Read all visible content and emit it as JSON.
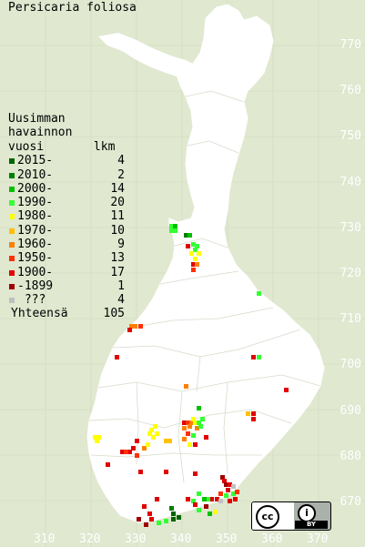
{
  "title": "Persicaria foliosa",
  "legend": {
    "header": [
      "Uusimman",
      "havainnon",
      "vuosi       lkm"
    ],
    "rows": [
      {
        "label": "2015-",
        "count": "4",
        "color": "#006400"
      },
      {
        "label": "2010-",
        "count": "2",
        "color": "#008000"
      },
      {
        "label": "2000-",
        "count": "14",
        "color": "#00c000"
      },
      {
        "label": "1990-",
        "count": "20",
        "color": "#33ff33"
      },
      {
        "label": "1980-",
        "count": "11",
        "color": "#ffff00"
      },
      {
        "label": "1970-",
        "count": "10",
        "color": "#ffc000"
      },
      {
        "label": "1960-",
        "count": "9",
        "color": "#ff8000"
      },
      {
        "label": "1950-",
        "count": "13",
        "color": "#ff3000"
      },
      {
        "label": "1900-",
        "count": "17",
        "color": "#e00000"
      },
      {
        "label": "-1899",
        "count": "1",
        "color": "#a00000"
      },
      {
        "label": " ???",
        "count": "4",
        "color": "#c0c0c0"
      }
    ],
    "total_label": "Yhteensä",
    "total": "105"
  },
  "y_ticks": [
    "770",
    "760",
    "750",
    "740",
    "730",
    "720",
    "710",
    "700",
    "690",
    "680",
    "670"
  ],
  "x_ticks": [
    "310",
    "320",
    "330",
    "340",
    "350",
    "360",
    "370"
  ],
  "license": {
    "icon": "cc-by-icon",
    "cc_text": "cc",
    "by_text": "BY"
  },
  "colors": {
    "background": "#e0e8d0",
    "land": "#ffffff",
    "boundaries": "#d0d8c0",
    "grid": "#c8d0b8"
  }
}
